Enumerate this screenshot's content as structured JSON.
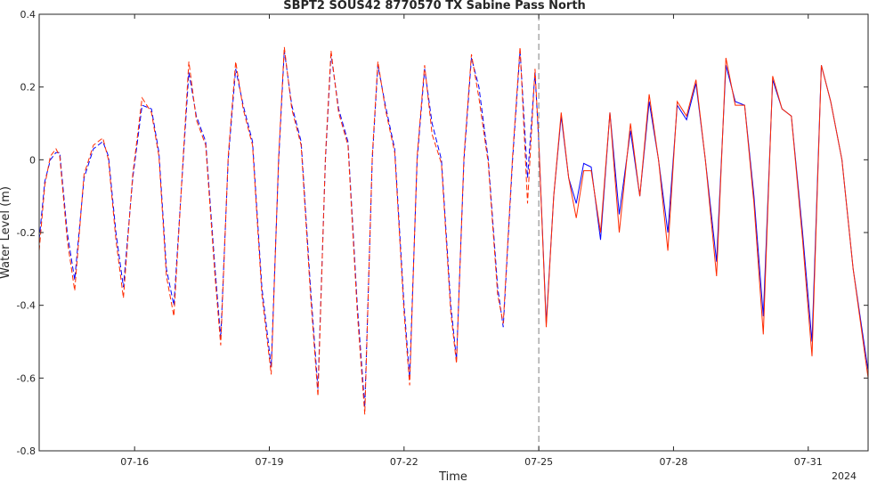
{
  "chart_data": {
    "type": "line",
    "title": "SBPT2 SOUS42 8770570 TX Sabine Pass North",
    "xlabel": "Time",
    "ylabel": "Water Level (m)",
    "x_year_label": "2024",
    "x_range": [
      "2024-07-13 21:00",
      "2024-08-01 08:00"
    ],
    "ylim": [
      -0.8,
      0.4
    ],
    "yticks": [
      -0.8,
      -0.6,
      -0.4,
      -0.2,
      0,
      0.2,
      0.4
    ],
    "ytick_labels": [
      "-0.8",
      "-0.6",
      "-0.4",
      "-0.2",
      "0",
      "0.2",
      "0.4"
    ],
    "xticks": [
      "2024-07-16",
      "2024-07-19",
      "2024-07-22",
      "2024-07-25",
      "2024-07-28",
      "2024-07-31"
    ],
    "xtick_labels": [
      "07-16",
      "07-19",
      "07-22",
      "07-25",
      "07-28",
      "07-31"
    ],
    "nowcast_divider": "2024-07-25 00:00",
    "grid": false,
    "colors": {
      "series_blue": "#0000ff",
      "series_red": "#ff2a00",
      "divider": "#808080",
      "axis": "#262626"
    },
    "series": [
      {
        "color": "#0000ff",
        "points": [
          [
            "2024-07-13 21:00",
            -0.22
          ],
          [
            "2024-07-14 00:00",
            -0.06
          ],
          [
            "2024-07-14 03:00",
            0.0
          ],
          [
            "2024-07-14 06:00",
            0.02
          ],
          [
            "2024-07-14 08:00",
            0.02
          ],
          [
            "2024-07-14 12:00",
            -0.2
          ],
          [
            "2024-07-14 16:00",
            -0.33
          ],
          [
            "2024-07-14 21:00",
            -0.05
          ],
          [
            "2024-07-15 02:00",
            0.03
          ],
          [
            "2024-07-15 07:00",
            0.05
          ],
          [
            "2024-07-15 10:00",
            0.01
          ],
          [
            "2024-07-15 14:00",
            -0.2
          ],
          [
            "2024-07-15 18:00",
            -0.35
          ],
          [
            "2024-07-15 23:00",
            -0.05
          ],
          [
            "2024-07-16 04:00",
            0.15
          ],
          [
            "2024-07-16 09:00",
            0.14
          ],
          [
            "2024-07-16 13:00",
            0.02
          ],
          [
            "2024-07-16 17:00",
            -0.3
          ],
          [
            "2024-07-16 21:00",
            -0.4
          ],
          [
            "2024-07-17 02:00",
            0.0
          ],
          [
            "2024-07-17 05:00",
            0.24
          ],
          [
            "2024-07-17 09:00",
            0.12
          ],
          [
            "2024-07-17 14:00",
            0.05
          ],
          [
            "2024-07-17 19:00",
            -0.3
          ],
          [
            "2024-07-17 22:00",
            -0.49
          ],
          [
            "2024-07-18 02:00",
            0.0
          ],
          [
            "2024-07-18 06:00",
            0.25
          ],
          [
            "2024-07-18 10:00",
            0.15
          ],
          [
            "2024-07-18 15:00",
            0.05
          ],
          [
            "2024-07-18 20:00",
            -0.35
          ],
          [
            "2024-07-19 01:00",
            -0.57
          ],
          [
            "2024-07-19 05:00",
            0.0
          ],
          [
            "2024-07-19 08:00",
            0.3
          ],
          [
            "2024-07-19 12:00",
            0.15
          ],
          [
            "2024-07-19 17:00",
            0.05
          ],
          [
            "2024-07-19 22:00",
            -0.35
          ],
          [
            "2024-07-20 02:00",
            -0.63
          ],
          [
            "2024-07-20 06:00",
            0.0
          ],
          [
            "2024-07-20 09:00",
            0.29
          ],
          [
            "2024-07-20 13:00",
            0.14
          ],
          [
            "2024-07-20 18:00",
            0.05
          ],
          [
            "2024-07-20 23:00",
            -0.4
          ],
          [
            "2024-07-21 03:00",
            -0.68
          ],
          [
            "2024-07-21 07:00",
            0.0
          ],
          [
            "2024-07-21 10:00",
            0.26
          ],
          [
            "2024-07-21 14:00",
            0.15
          ],
          [
            "2024-07-21 19:00",
            0.03
          ],
          [
            "2024-07-22 00:00",
            -0.4
          ],
          [
            "2024-07-22 03:00",
            -0.6
          ],
          [
            "2024-07-22 07:00",
            0.0
          ],
          [
            "2024-07-22 11:00",
            0.25
          ],
          [
            "2024-07-22 15:00",
            0.1
          ],
          [
            "2024-07-22 20:00",
            0.0
          ],
          [
            "2024-07-23 01:00",
            -0.4
          ],
          [
            "2024-07-23 04:00",
            -0.55
          ],
          [
            "2024-07-23 08:00",
            0.0
          ],
          [
            "2024-07-23 12:00",
            0.28
          ],
          [
            "2024-07-23 16:00",
            0.2
          ],
          [
            "2024-07-23 21:00",
            0.0
          ],
          [
            "2024-07-24 02:00",
            -0.35
          ],
          [
            "2024-07-24 05:00",
            -0.46
          ],
          [
            "2024-07-24 10:00",
            0.0
          ],
          [
            "2024-07-24 14:00",
            0.3
          ],
          [
            "2024-07-24 18:00",
            -0.05
          ],
          [
            "2024-07-24 22:00",
            0.24
          ],
          [
            "2024-07-25 00:00",
            0.05
          ],
          [
            "2024-07-25 04:00",
            -0.45
          ],
          [
            "2024-07-25 08:00",
            -0.1
          ],
          [
            "2024-07-25 12:00",
            0.12
          ],
          [
            "2024-07-25 16:00",
            -0.05
          ],
          [
            "2024-07-25 20:00",
            -0.12
          ],
          [
            "2024-07-26 00:00",
            -0.01
          ],
          [
            "2024-07-26 04:00",
            -0.02
          ],
          [
            "2024-07-26 09:00",
            -0.22
          ],
          [
            "2024-07-26 14:00",
            0.13
          ],
          [
            "2024-07-26 19:00",
            -0.15
          ],
          [
            "2024-07-27 01:00",
            0.08
          ],
          [
            "2024-07-27 06:00",
            -0.1
          ],
          [
            "2024-07-27 11:00",
            0.16
          ],
          [
            "2024-07-27 16:00",
            0.0
          ],
          [
            "2024-07-27 21:00",
            -0.2
          ],
          [
            "2024-07-28 02:00",
            0.15
          ],
          [
            "2024-07-28 07:00",
            0.11
          ],
          [
            "2024-07-28 12:00",
            0.21
          ],
          [
            "2024-07-28 17:00",
            0.0
          ],
          [
            "2024-07-28 23:00",
            -0.28
          ],
          [
            "2024-07-29 04:00",
            0.26
          ],
          [
            "2024-07-29 09:00",
            0.16
          ],
          [
            "2024-07-29 14:00",
            0.15
          ],
          [
            "2024-07-29 19:00",
            -0.1
          ],
          [
            "2024-07-30 00:00",
            -0.43
          ],
          [
            "2024-07-30 05:00",
            0.22
          ],
          [
            "2024-07-30 10:00",
            0.14
          ],
          [
            "2024-07-30 15:00",
            0.12
          ],
          [
            "2024-07-30 21:00",
            -0.2
          ],
          [
            "2024-07-31 02:00",
            -0.5
          ],
          [
            "2024-07-31 07:00",
            0.26
          ],
          [
            "2024-07-31 12:00",
            0.16
          ],
          [
            "2024-07-31 18:00",
            0.0
          ],
          [
            "2024-08-01 00:00",
            -0.3
          ],
          [
            "2024-08-01 08:00",
            -0.58
          ]
        ]
      },
      {
        "color": "#ff2a00",
        "points": [
          [
            "2024-07-13 21:00",
            -0.25
          ],
          [
            "2024-07-14 00:00",
            -0.07
          ],
          [
            "2024-07-14 03:00",
            0.01
          ],
          [
            "2024-07-14 06:00",
            0.03
          ],
          [
            "2024-07-14 08:00",
            0.01
          ],
          [
            "2024-07-14 12:00",
            -0.22
          ],
          [
            "2024-07-14 16:00",
            -0.36
          ],
          [
            "2024-07-14 21:00",
            -0.04
          ],
          [
            "2024-07-15 02:00",
            0.04
          ],
          [
            "2024-07-15 07:00",
            0.06
          ],
          [
            "2024-07-15 10:00",
            0.0
          ],
          [
            "2024-07-15 14:00",
            -0.22
          ],
          [
            "2024-07-15 18:00",
            -0.38
          ],
          [
            "2024-07-15 23:00",
            -0.04
          ],
          [
            "2024-07-16 04:00",
            0.17
          ],
          [
            "2024-07-16 09:00",
            0.13
          ],
          [
            "2024-07-16 13:00",
            0.01
          ],
          [
            "2024-07-16 17:00",
            -0.32
          ],
          [
            "2024-07-16 21:00",
            -0.43
          ],
          [
            "2024-07-17 02:00",
            0.01
          ],
          [
            "2024-07-17 05:00",
            0.27
          ],
          [
            "2024-07-17 09:00",
            0.11
          ],
          [
            "2024-07-17 14:00",
            0.04
          ],
          [
            "2024-07-17 19:00",
            -0.32
          ],
          [
            "2024-07-17 22:00",
            -0.51
          ],
          [
            "2024-07-18 02:00",
            0.01
          ],
          [
            "2024-07-18 06:00",
            0.27
          ],
          [
            "2024-07-18 10:00",
            0.14
          ],
          [
            "2024-07-18 15:00",
            0.04
          ],
          [
            "2024-07-18 20:00",
            -0.37
          ],
          [
            "2024-07-19 01:00",
            -0.59
          ],
          [
            "2024-07-19 05:00",
            0.01
          ],
          [
            "2024-07-19 08:00",
            0.31
          ],
          [
            "2024-07-19 12:00",
            0.14
          ],
          [
            "2024-07-19 17:00",
            0.04
          ],
          [
            "2024-07-19 22:00",
            -0.37
          ],
          [
            "2024-07-20 02:00",
            -0.65
          ],
          [
            "2024-07-20 06:00",
            0.01
          ],
          [
            "2024-07-20 09:00",
            0.3
          ],
          [
            "2024-07-20 13:00",
            0.13
          ],
          [
            "2024-07-20 18:00",
            0.04
          ],
          [
            "2024-07-20 23:00",
            -0.42
          ],
          [
            "2024-07-21 03:00",
            -0.7
          ],
          [
            "2024-07-21 07:00",
            0.01
          ],
          [
            "2024-07-21 10:00",
            0.27
          ],
          [
            "2024-07-21 14:00",
            0.14
          ],
          [
            "2024-07-21 19:00",
            0.02
          ],
          [
            "2024-07-22 00:00",
            -0.42
          ],
          [
            "2024-07-22 03:00",
            -0.62
          ],
          [
            "2024-07-22 07:00",
            0.01
          ],
          [
            "2024-07-22 11:00",
            0.26
          ],
          [
            "2024-07-22 15:00",
            0.07
          ],
          [
            "2024-07-22 20:00",
            -0.01
          ],
          [
            "2024-07-23 01:00",
            -0.42
          ],
          [
            "2024-07-23 04:00",
            -0.56
          ],
          [
            "2024-07-23 08:00",
            0.01
          ],
          [
            "2024-07-23 12:00",
            0.29
          ],
          [
            "2024-07-23 16:00",
            0.17
          ],
          [
            "2024-07-23 21:00",
            -0.01
          ],
          [
            "2024-07-24 02:00",
            -0.37
          ],
          [
            "2024-07-24 05:00",
            -0.45
          ],
          [
            "2024-07-24 10:00",
            0.01
          ],
          [
            "2024-07-24 14:00",
            0.31
          ],
          [
            "2024-07-24 18:00",
            -0.12
          ],
          [
            "2024-07-24 22:00",
            0.25
          ],
          [
            "2024-07-25 00:00",
            0.05
          ],
          [
            "2024-07-25 04:00",
            -0.46
          ],
          [
            "2024-07-25 08:00",
            -0.1
          ],
          [
            "2024-07-25 12:00",
            0.13
          ],
          [
            "2024-07-25 16:00",
            -0.05
          ],
          [
            "2024-07-25 20:00",
            -0.16
          ],
          [
            "2024-07-26 00:00",
            -0.03
          ],
          [
            "2024-07-26 04:00",
            -0.03
          ],
          [
            "2024-07-26 09:00",
            -0.2
          ],
          [
            "2024-07-26 14:00",
            0.13
          ],
          [
            "2024-07-26 19:00",
            -0.2
          ],
          [
            "2024-07-27 01:00",
            0.1
          ],
          [
            "2024-07-27 06:00",
            -0.1
          ],
          [
            "2024-07-27 11:00",
            0.18
          ],
          [
            "2024-07-27 16:00",
            0.0
          ],
          [
            "2024-07-27 21:00",
            -0.25
          ],
          [
            "2024-07-28 02:00",
            0.16
          ],
          [
            "2024-07-28 07:00",
            0.12
          ],
          [
            "2024-07-28 12:00",
            0.22
          ],
          [
            "2024-07-28 17:00",
            0.0
          ],
          [
            "2024-07-28 23:00",
            -0.32
          ],
          [
            "2024-07-29 04:00",
            0.28
          ],
          [
            "2024-07-29 09:00",
            0.15
          ],
          [
            "2024-07-29 14:00",
            0.15
          ],
          [
            "2024-07-29 19:00",
            -0.12
          ],
          [
            "2024-07-30 00:00",
            -0.48
          ],
          [
            "2024-07-30 05:00",
            0.23
          ],
          [
            "2024-07-30 10:00",
            0.14
          ],
          [
            "2024-07-30 15:00",
            0.12
          ],
          [
            "2024-07-30 21:00",
            -0.22
          ],
          [
            "2024-07-31 02:00",
            -0.54
          ],
          [
            "2024-07-31 07:00",
            0.26
          ],
          [
            "2024-07-31 12:00",
            0.16
          ],
          [
            "2024-07-31 18:00",
            0.0
          ],
          [
            "2024-08-01 00:00",
            -0.3
          ],
          [
            "2024-08-01 08:00",
            -0.6
          ]
        ]
      }
    ]
  }
}
